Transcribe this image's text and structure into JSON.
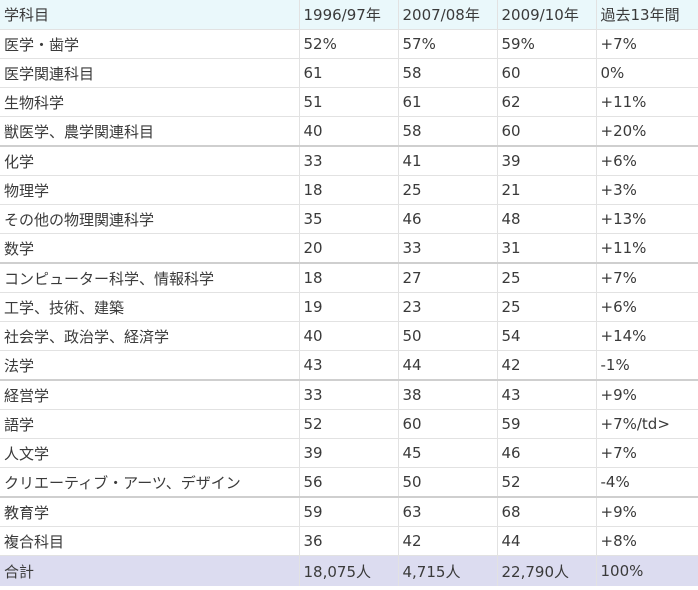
{
  "table": {
    "headers": [
      "学科目",
      "1996/97年",
      "2007/08年",
      "2009/10年",
      "過去13年間"
    ],
    "rows": [
      [
        "医学・歯学",
        "52%",
        "57%",
        "59%",
        "+7%"
      ],
      [
        "医学関連科目",
        "61",
        "58",
        "60",
        "0%"
      ],
      [
        "生物科学",
        "51",
        "61",
        "62",
        "+11%"
      ],
      [
        "獣医学、農学関連科目",
        "40",
        "58",
        "60",
        "+20%"
      ],
      [
        "化学",
        "33",
        "41",
        "39",
        "+6%"
      ],
      [
        "物理学",
        "18",
        "25",
        "21",
        "+3%"
      ],
      [
        "その他の物理関連科学",
        "35",
        "46",
        "48",
        "+13%"
      ],
      [
        "数学",
        "20",
        "33",
        "31",
        "+11%"
      ],
      [
        "コンピューター科学、情報科学",
        "18",
        "27",
        "25",
        "+7%"
      ],
      [
        "工学、技術、建築",
        "19",
        "23",
        "25",
        "+6%"
      ],
      [
        "社会学、政治学、経済学",
        "40",
        "50",
        "54",
        "+14%"
      ],
      [
        "法学",
        "43",
        "44",
        "42",
        "-1%"
      ],
      [
        "経営学",
        "33",
        "38",
        "43",
        "+9%"
      ],
      [
        "語学",
        "52",
        "60",
        "59",
        "+7%/td>"
      ],
      [
        "人文学",
        "39",
        "45",
        "46",
        "+7%"
      ],
      [
        "クリエーティブ・アーツ、デザイン",
        "56",
        "50",
        "52",
        "-4%"
      ],
      [
        "教育学",
        "59",
        "63",
        "68",
        "+9%"
      ],
      [
        "複合科目",
        "36",
        "42",
        "44",
        "+8%"
      ]
    ],
    "total": [
      "合計",
      "18,075人",
      "4,715人",
      "22,790人",
      "100%"
    ]
  }
}
